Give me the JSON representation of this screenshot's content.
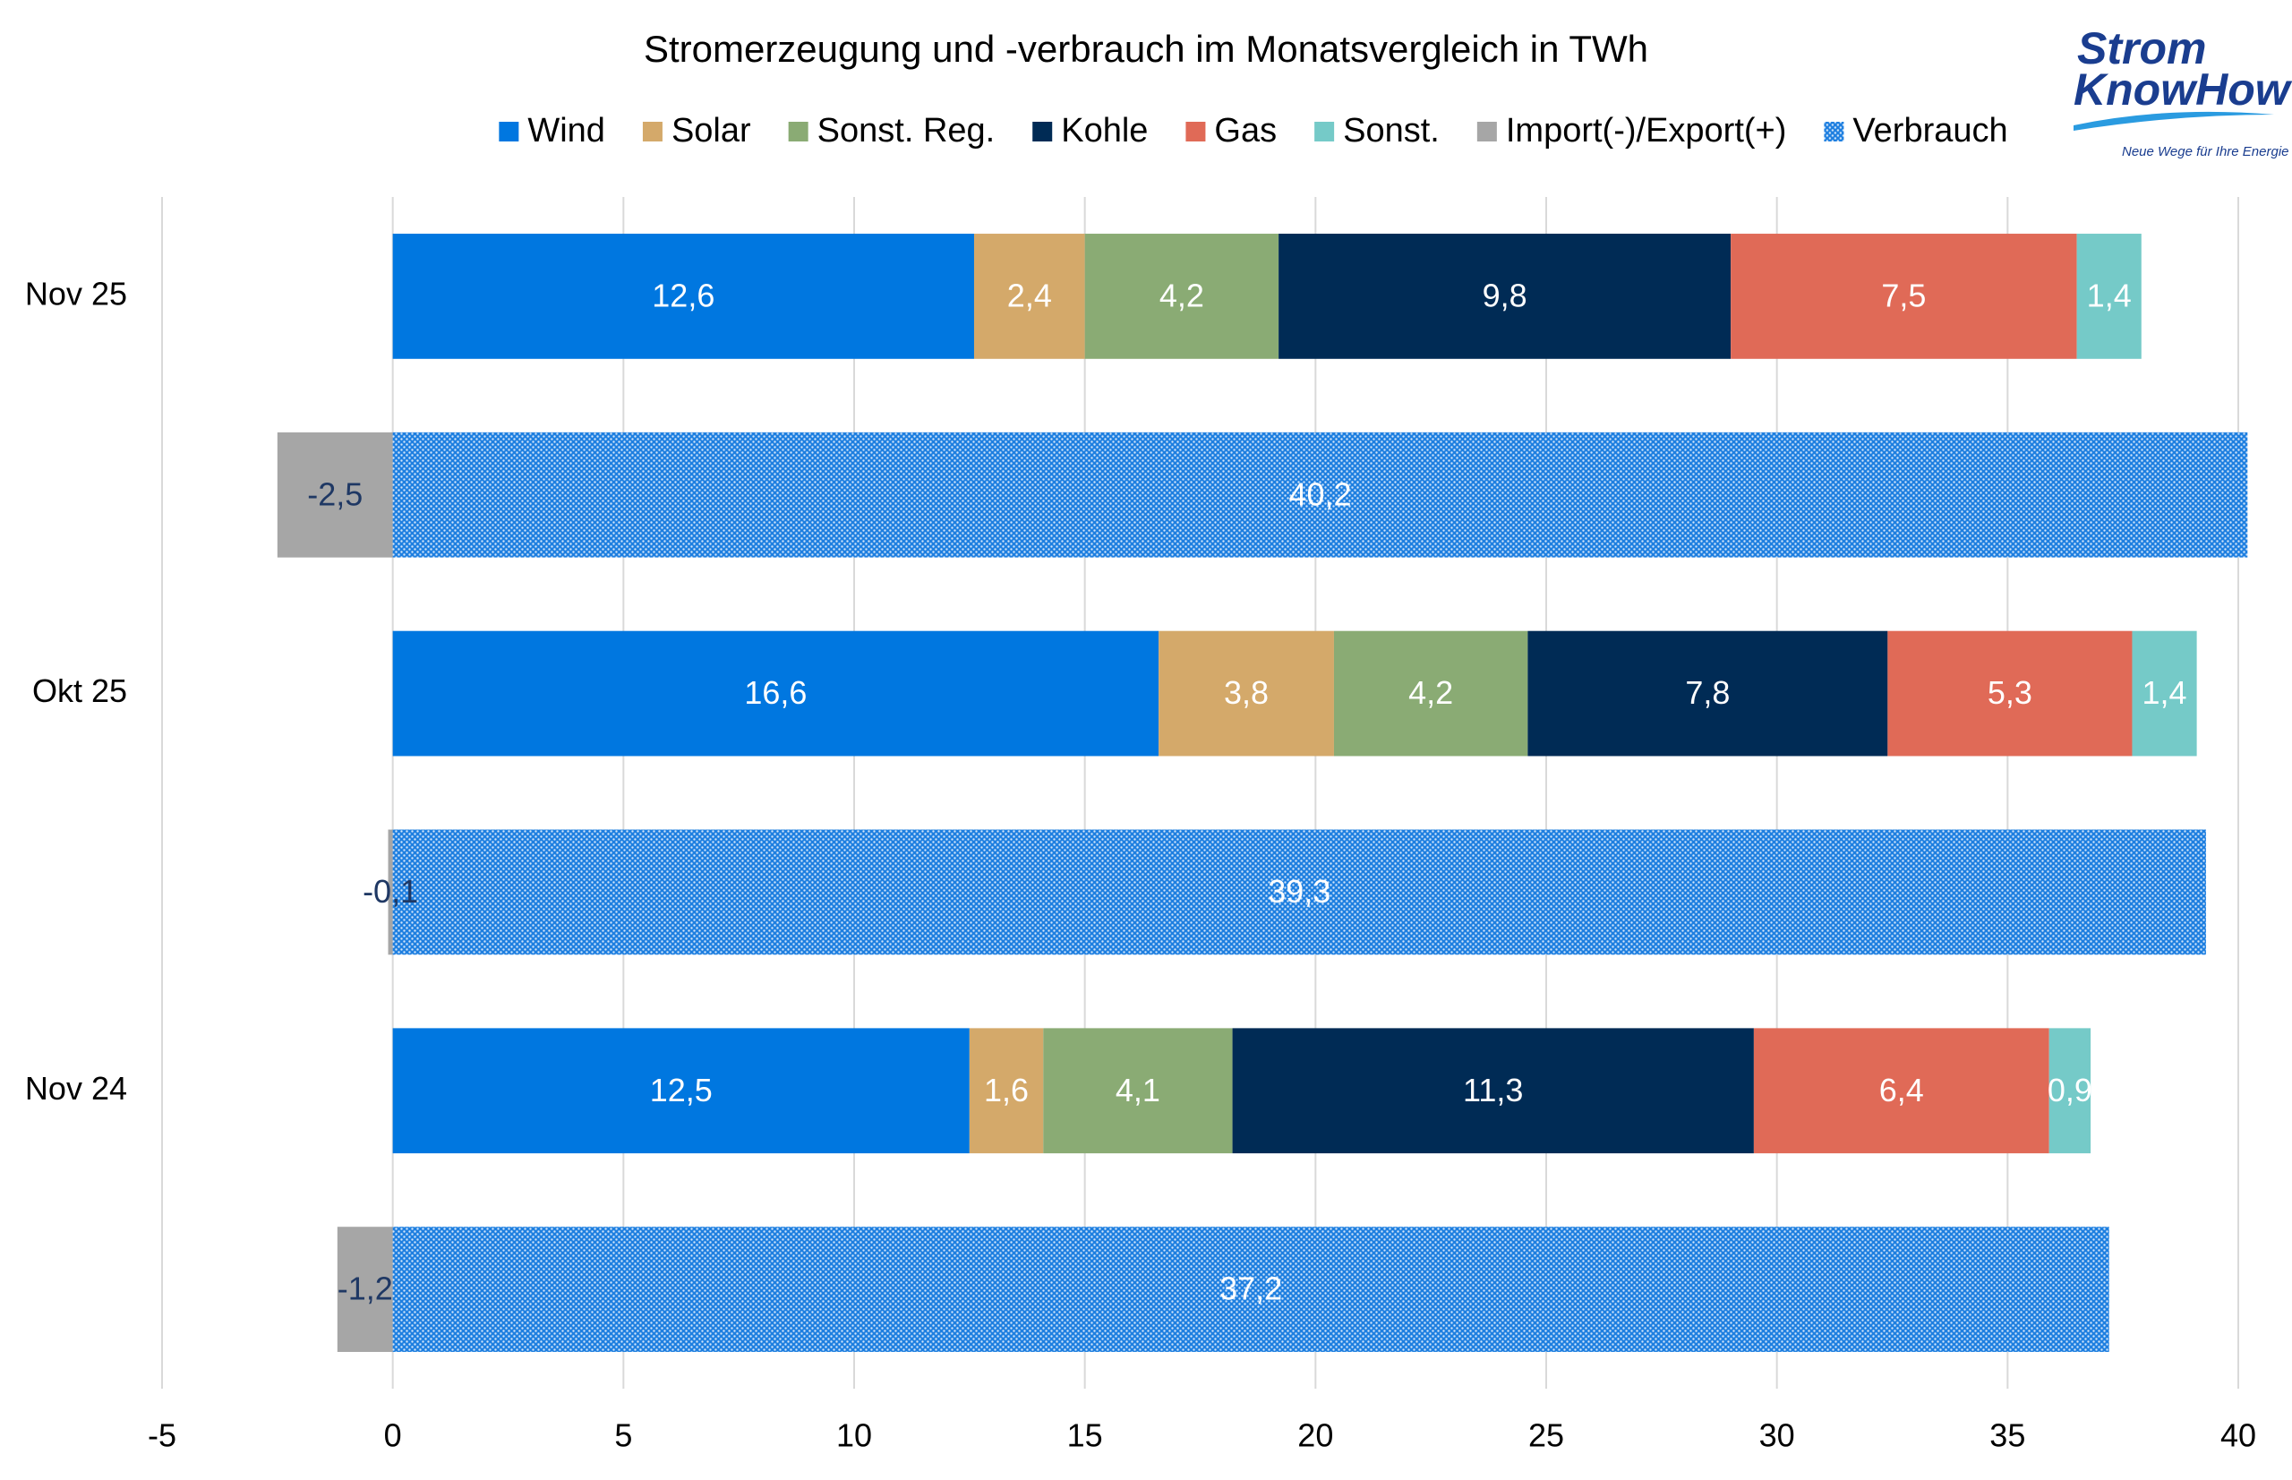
{
  "chart_data": {
    "type": "bar",
    "orientation": "horizontal",
    "stacked": true,
    "title": "Stromerzeugung und -verbrauch im Monatsvergleich in TWh",
    "categories": [
      "Nov 25",
      null,
      "Okt 25",
      null,
      "Nov 24",
      null
    ],
    "series": [
      {
        "name": "Wind",
        "color": "#0077e0",
        "values": [
          12.6,
          null,
          16.6,
          null,
          12.5,
          null
        ],
        "value_labels": [
          "12,6",
          null,
          "16,6",
          null,
          "12,5",
          null
        ]
      },
      {
        "name": "Solar",
        "color": "#d4a96a",
        "values": [
          2.4,
          null,
          3.8,
          null,
          1.6,
          null
        ],
        "value_labels": [
          "2,4",
          null,
          "3,8",
          null,
          "1,6",
          null
        ]
      },
      {
        "name": "Sonst. Reg.",
        "color": "#8aab74",
        "values": [
          4.2,
          null,
          4.2,
          null,
          4.1,
          null
        ],
        "value_labels": [
          "4,2",
          null,
          "4,2",
          null,
          "4,1",
          null
        ]
      },
      {
        "name": "Kohle",
        "color": "#002b55",
        "values": [
          9.8,
          null,
          7.8,
          null,
          11.3,
          null
        ],
        "value_labels": [
          "9,8",
          null,
          "7,8",
          null,
          "11,3",
          null
        ]
      },
      {
        "name": "Gas",
        "color": "#e06a57",
        "values": [
          7.5,
          null,
          5.3,
          null,
          6.4,
          null
        ],
        "value_labels": [
          "7,5",
          null,
          "5,3",
          null,
          "6,4",
          null
        ]
      },
      {
        "name": "Sonst.",
        "color": "#75cac8",
        "values": [
          1.4,
          null,
          1.4,
          null,
          0.9,
          null
        ],
        "value_labels": [
          "1,4",
          null,
          "1,4",
          null,
          "0,9",
          null
        ]
      },
      {
        "name": "Import(-)/Export(+)",
        "color": "#a6a6a6",
        "label_color": "#1f3864",
        "values": [
          null,
          -2.5,
          null,
          -0.1,
          null,
          -1.2
        ],
        "value_labels": [
          null,
          "-2,5",
          null,
          "-0,1",
          null,
          "-1,2"
        ]
      },
      {
        "name": "Verbrauch",
        "color": "#1e7fe0",
        "pattern": "dots",
        "values": [
          null,
          40.2,
          null,
          39.3,
          null,
          37.2
        ],
        "value_labels": [
          null,
          "40,2",
          null,
          "39,3",
          null,
          "37,2"
        ]
      }
    ],
    "xlim": [
      -5,
      40
    ],
    "xticks": [
      -5,
      0,
      5,
      10,
      15,
      20,
      25,
      30,
      35,
      40
    ],
    "grid": true,
    "legend": "top"
  },
  "logo": {
    "line1": "Strom",
    "line2": "KnowHow",
    "tagline": "Neue Wege für Ihre Energie"
  }
}
